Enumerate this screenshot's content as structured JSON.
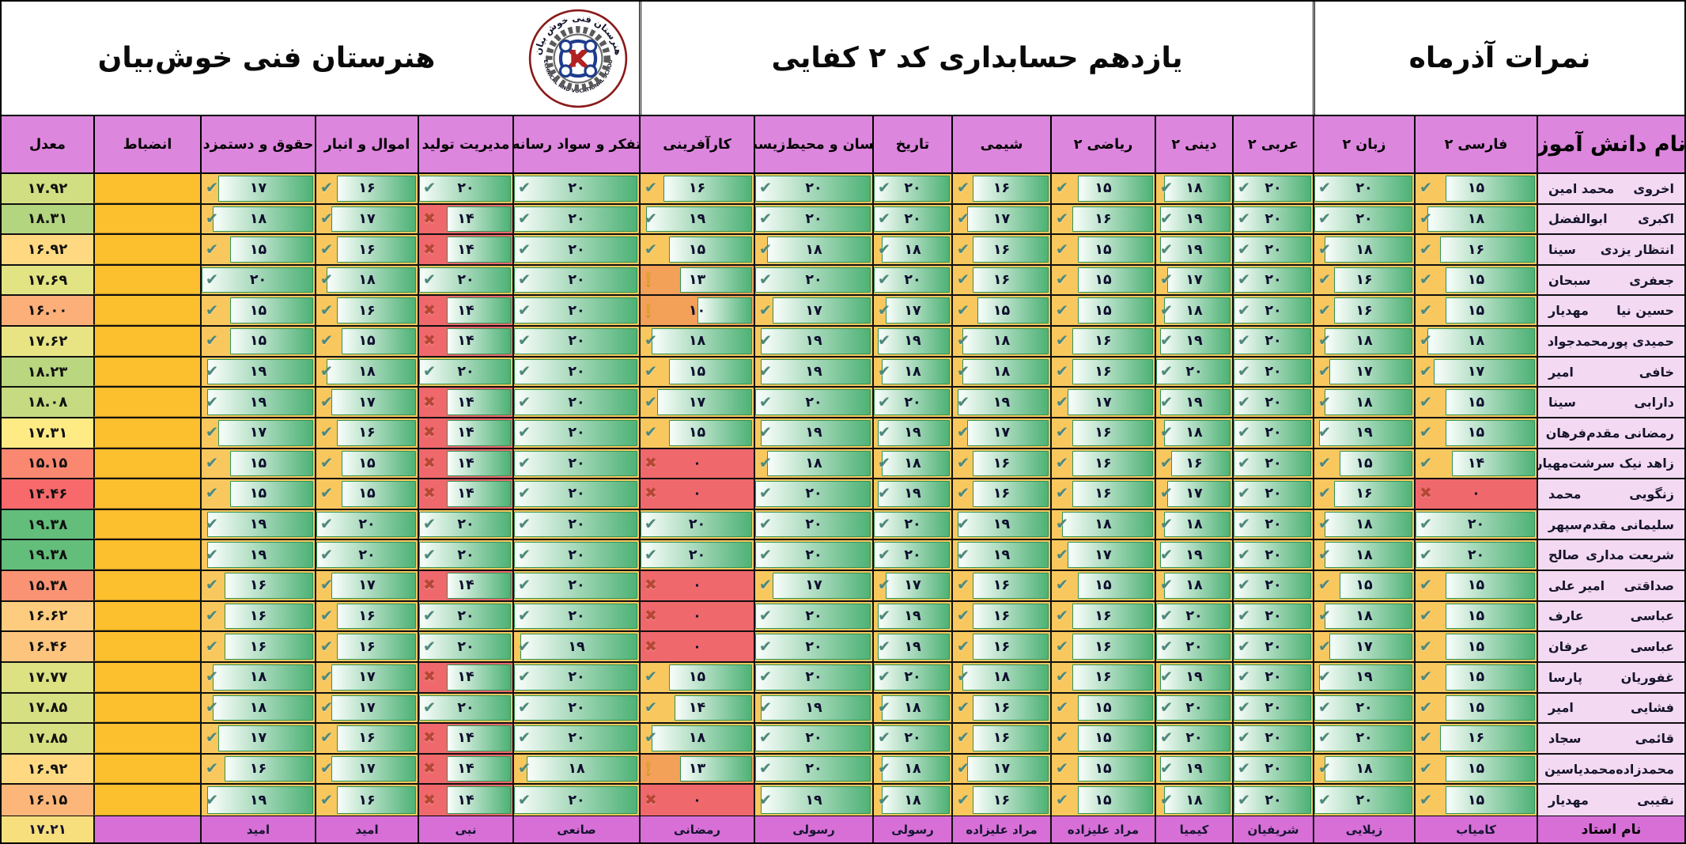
{
  "banner": {
    "report_title": "نمرات آذرماه",
    "class_title": "یازدهم حسابداری کد ۲ کفایی",
    "school_name": "هنرستان فنی خوش‌بیان",
    "logo": {
      "top_text": "هنرستان فنی خوش بیان",
      "bottom_text": "TECHNICAL AND VOCATIONAL SCHOOL",
      "letter": "K"
    }
  },
  "columns": {
    "student": "نام دانش آموز",
    "subjects": [
      "فارسی ۲",
      "زبان ۲",
      "عربی ۲",
      "دینی ۲",
      "ریاضی ۲",
      "شیمی",
      "تاریخ",
      "انسان و محیط‌زیست",
      "کارآفرینی",
      "تفکر و سواد رسانه",
      "مدیریت تولید",
      "اموال و انبار",
      "حقوق و دستمزد"
    ],
    "discipline": "انضباط",
    "average": "معدل"
  },
  "grading": {
    "max": 20
  },
  "students": [
    {
      "family": "اخروی",
      "given": "محمد امین",
      "grades": [
        15,
        20,
        20,
        18,
        15,
        16,
        20,
        20,
        16,
        20,
        20,
        16,
        17
      ],
      "icons": "ccccccccccccc",
      "average": "17.92"
    },
    {
      "family": "اکبری",
      "given": "ابوالفضل",
      "grades": [
        18,
        20,
        20,
        19,
        16,
        17,
        20,
        20,
        19,
        20,
        14,
        17,
        18
      ],
      "icons": "ccccccccccxcc",
      "average": "18.31"
    },
    {
      "family": "انتظار یزدی",
      "given": "سینا",
      "grades": [
        16,
        18,
        20,
        19,
        15,
        16,
        18,
        18,
        15,
        20,
        14,
        16,
        15
      ],
      "icons": "ccccccccccxcc",
      "average": "16.92"
    },
    {
      "family": "جعفری",
      "given": "سبحان",
      "grades": [
        15,
        16,
        20,
        17,
        15,
        16,
        20,
        20,
        13,
        20,
        20,
        18,
        20
      ],
      "icons": "ccccccccwcccc",
      "average": "17.69"
    },
    {
      "family": "حسین نیا",
      "given": "مهدیار",
      "grades": [
        15,
        16,
        20,
        18,
        15,
        15,
        17,
        17,
        10,
        20,
        14,
        16,
        15
      ],
      "icons": "ccccccccwcxcc",
      "average": "16.00"
    },
    {
      "family": "حمیدی پور",
      "given": "محمدجواد",
      "grades": [
        18,
        18,
        20,
        19,
        16,
        18,
        19,
        19,
        18,
        20,
        14,
        15,
        15
      ],
      "icons": "ccccccccccxcc",
      "average": "17.62"
    },
    {
      "family": "خافی",
      "given": "امیر",
      "grades": [
        17,
        17,
        20,
        20,
        16,
        18,
        18,
        19,
        15,
        20,
        20,
        18,
        19
      ],
      "icons": "ccccccccccccc",
      "average": "18.23"
    },
    {
      "family": "دارابی",
      "given": "سینا",
      "grades": [
        15,
        18,
        20,
        19,
        17,
        19,
        20,
        20,
        17,
        20,
        14,
        17,
        19
      ],
      "icons": "ccccccccccxcc",
      "average": "18.08"
    },
    {
      "family": "رمضانی مقدم",
      "given": "فرهان",
      "grades": [
        15,
        19,
        20,
        18,
        16,
        17,
        19,
        19,
        15,
        20,
        14,
        16,
        17
      ],
      "icons": "ccccccccccxcc",
      "average": "17.31"
    },
    {
      "family": "زاهد نیک سرشت",
      "given": "مهیار",
      "grades": [
        14,
        15,
        20,
        16,
        16,
        16,
        18,
        18,
        0,
        20,
        14,
        15,
        15
      ],
      "icons": "ccccccccxcxcc",
      "average": "15.15"
    },
    {
      "family": "زنگویی",
      "given": "محمد",
      "grades": [
        0,
        16,
        20,
        17,
        16,
        16,
        19,
        20,
        0,
        20,
        14,
        15,
        15
      ],
      "icons": "xcccccccxcxcc",
      "average": "14.46"
    },
    {
      "family": "سلیمانی مقدم",
      "given": "سپهر",
      "grades": [
        20,
        18,
        20,
        18,
        18,
        19,
        20,
        20,
        20,
        20,
        20,
        20,
        19
      ],
      "icons": "ccccccccccccc",
      "average": "19.38"
    },
    {
      "family": "شریعت مداری",
      "given": "صالح",
      "grades": [
        20,
        18,
        20,
        19,
        17,
        19,
        20,
        20,
        20,
        20,
        20,
        20,
        19
      ],
      "icons": "ccccccccccccc",
      "average": "19.38"
    },
    {
      "family": "صداقتی",
      "given": "امیر علی",
      "grades": [
        15,
        15,
        20,
        18,
        15,
        16,
        17,
        17,
        0,
        20,
        14,
        17,
        16
      ],
      "icons": "ccccccccxcxcc",
      "average": "15.38"
    },
    {
      "family": "عباسی",
      "given": "عارف",
      "grades": [
        15,
        18,
        20,
        20,
        16,
        16,
        19,
        20,
        0,
        20,
        20,
        16,
        16
      ],
      "icons": "ccccccccxcccc",
      "average": "16.62"
    },
    {
      "family": "عباسی",
      "given": "عرفان",
      "grades": [
        15,
        17,
        20,
        20,
        16,
        16,
        19,
        20,
        0,
        19,
        20,
        16,
        16
      ],
      "icons": "ccccccccxcccc",
      "average": "16.46"
    },
    {
      "family": "غفوریان",
      "given": "پارسا",
      "grades": [
        15,
        19,
        20,
        19,
        16,
        18,
        20,
        20,
        15,
        20,
        14,
        17,
        18
      ],
      "icons": "ccccccccccxcc",
      "average": "17.77"
    },
    {
      "family": "فشایی",
      "given": "امیر",
      "grades": [
        15,
        20,
        20,
        20,
        15,
        16,
        18,
        19,
        14,
        20,
        20,
        17,
        18
      ],
      "icons": "ccccccccccccc",
      "average": "17.85"
    },
    {
      "family": "قائمی",
      "given": "سجاد",
      "grades": [
        16,
        20,
        20,
        20,
        15,
        16,
        20,
        20,
        18,
        20,
        14,
        16,
        17
      ],
      "icons": "ccccccccccxcc",
      "average": "17.85"
    },
    {
      "family": "محمدزاده",
      "given": "محمدیاسین",
      "grades": [
        15,
        18,
        20,
        19,
        15,
        17,
        18,
        20,
        13,
        18,
        14,
        17,
        16
      ],
      "icons": "ccccccccwcxcc",
      "average": "16.92"
    },
    {
      "family": "نقیبی",
      "given": "مهدیار",
      "grades": [
        15,
        20,
        20,
        18,
        15,
        16,
        18,
        19,
        0,
        20,
        14,
        16,
        19
      ],
      "icons": "ccccccccxcxcc",
      "average": "16.15"
    }
  ],
  "teachers_row": {
    "label": "نام استاد",
    "by_subject": [
      "کامیاب",
      "زیلایی",
      "شریفیان",
      "کیمیا",
      "مراد علیزاده",
      "مراد علیزاده",
      "رسولی",
      "رسولی",
      "رمضانی",
      "صانعی",
      "نبی",
      "امید",
      "امید"
    ],
    "discipline": "",
    "class_average": "17.21"
  },
  "colors": {
    "banner_purple": "#e089e0",
    "banner_pink": "#f6dcf6",
    "header_purple": "#dd86dd",
    "name_cell_pink": "#f4d9f3",
    "cell_gold": "#f8c85e",
    "cell_orange": "#f3a058",
    "cell_red": "#ef686c",
    "bar_green": "#4eb276",
    "bar_light": "#f3fbf6",
    "bar_border": "#2f9457",
    "discipline_gold": "#fcbf2e",
    "teacher_row_purple": "#d76fd7",
    "teacher_avg_khaki": "#f7df7d",
    "check_icon": "#4d887b",
    "x_icon": "#b54734",
    "warn_icon": "#e2a62f",
    "scale": {
      "min": {
        "value": 14.46,
        "color": "#F8696B"
      },
      "mid": {
        "value": 17.31,
        "color": "#FFEB84"
      },
      "max": {
        "value": 19.38,
        "color": "#63BE7B"
      }
    }
  }
}
